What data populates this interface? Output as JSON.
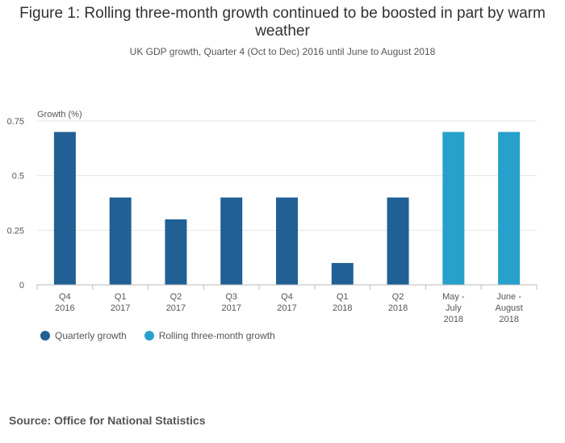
{
  "title": "Figure 1: Rolling three-month growth continued to be boosted in part by warm weather",
  "subtitle": "UK GDP growth, Quarter 4 (Oct to Dec) 2016 until June to August 2018",
  "source": "Source: Office for National Statistics",
  "colors": {
    "quarterly": "#206095",
    "rolling": "#27a0cc",
    "grid": "#e5e5e5",
    "axis": "#bbbbbb"
  },
  "chart_data": {
    "type": "bar",
    "ylabel": "Growth (%)",
    "xlabel": "",
    "ylim": [
      0,
      0.75
    ],
    "yticks": [
      "0",
      "0.25",
      "0.5",
      "0.75"
    ],
    "ytick_values": [
      0,
      0.25,
      0.5,
      0.75
    ],
    "grid": true,
    "legend_position": "bottom-left",
    "categories": [
      [
        "Q4",
        "2016"
      ],
      [
        "Q1",
        "2017"
      ],
      [
        "Q2",
        "2017"
      ],
      [
        "Q3",
        "2017"
      ],
      [
        "Q4",
        "2017"
      ],
      [
        "Q1",
        "2018"
      ],
      [
        "Q2",
        "2018"
      ],
      [
        "May -",
        "July",
        "2018"
      ],
      [
        "June -",
        "August",
        "2018"
      ]
    ],
    "series": [
      {
        "name": "Quarterly growth",
        "color": "#206095",
        "values": [
          0.7,
          0.4,
          0.3,
          0.4,
          0.4,
          0.1,
          0.4,
          null,
          null
        ]
      },
      {
        "name": "Rolling three-month growth",
        "color": "#27a0cc",
        "values": [
          null,
          null,
          null,
          null,
          null,
          null,
          null,
          0.7,
          0.7
        ]
      }
    ]
  }
}
